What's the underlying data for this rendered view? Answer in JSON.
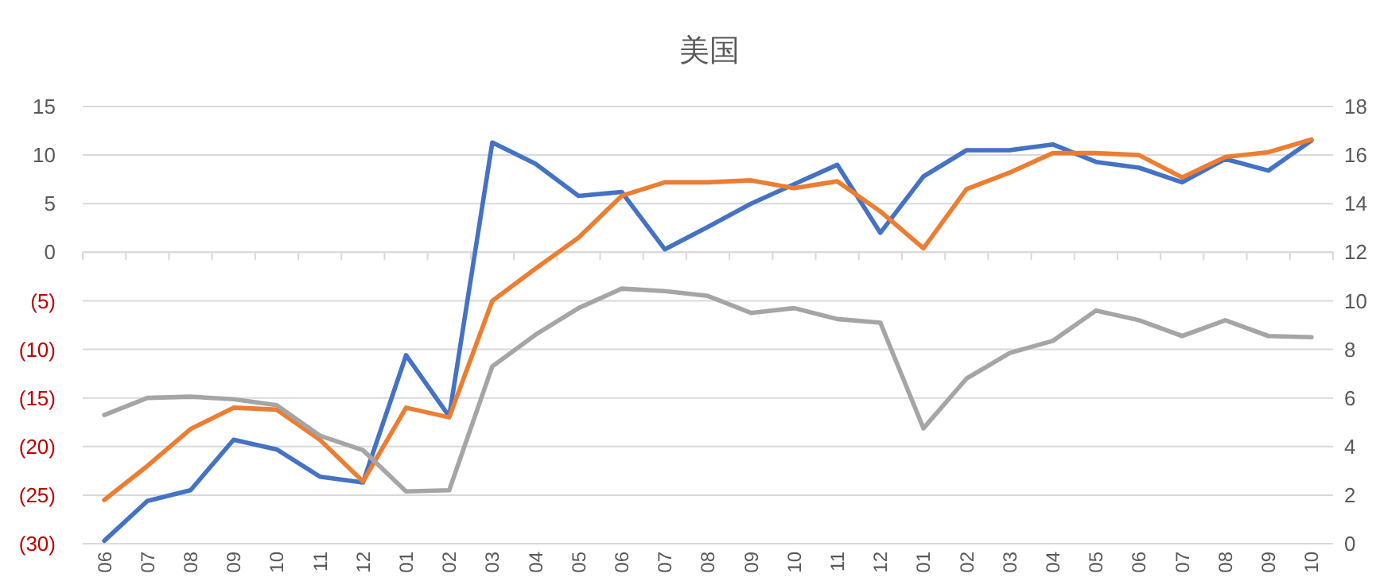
{
  "chart_data": {
    "type": "line",
    "title": "美国",
    "categories": [
      "06",
      "07",
      "08",
      "09",
      "10",
      "11",
      "12",
      "01",
      "02",
      "03",
      "04",
      "05",
      "06",
      "07",
      "08",
      "09",
      "10",
      "11",
      "12",
      "01",
      "02",
      "03",
      "04",
      "05",
      "06",
      "07",
      "08",
      "09",
      "10"
    ],
    "series": [
      {
        "color": "#4472c4",
        "values": [
          -29.7,
          -25.6,
          -24.5,
          -19.3,
          -20.3,
          -23.1,
          -23.7,
          -10.6,
          -16.9,
          11.3,
          9.1,
          5.8,
          6.2,
          0.3,
          2.6,
          5.0,
          7.0,
          9.0,
          2.0,
          7.8,
          10.5,
          10.5,
          11.1,
          9.3,
          8.7,
          7.2,
          9.6,
          8.4,
          11.5
        ]
      },
      {
        "color": "#ed7d31",
        "values": [
          -25.5,
          -22.0,
          -18.2,
          -16.0,
          -16.2,
          -19.3,
          -23.6,
          -16.0,
          -17.0,
          -5.0,
          -1.7,
          1.5,
          5.8,
          7.2,
          7.2,
          7.4,
          6.6,
          7.3,
          4.2,
          0.4,
          6.5,
          8.2,
          10.2,
          10.2,
          10.0,
          7.7,
          9.8,
          10.3,
          11.6
        ]
      },
      {
        "color": "#a5a5a5",
        "axis": "y2",
        "values": [
          5.3,
          6.0,
          6.05,
          5.95,
          5.7,
          4.45,
          3.85,
          2.15,
          2.2,
          7.3,
          8.6,
          9.7,
          10.5,
          10.4,
          10.2,
          9.5,
          9.7,
          9.25,
          9.1,
          4.75,
          6.8,
          7.85,
          8.35,
          9.6,
          9.2,
          8.55,
          9.2,
          8.55,
          8.5
        ]
      }
    ],
    "ylim": [
      -30,
      15
    ],
    "yticks": [
      {
        "value": -30,
        "label": "(30)"
      },
      {
        "value": -25,
        "label": "(25)"
      },
      {
        "value": -20,
        "label": "(20)"
      },
      {
        "value": -15,
        "label": "(15)"
      },
      {
        "value": -10,
        "label": "(10)"
      },
      {
        "value": -5,
        "label": "(5)"
      },
      0,
      5,
      10,
      15
    ],
    "y2lim": [
      0,
      18
    ],
    "y2ticks": [
      0,
      2,
      4,
      6,
      8,
      10,
      12,
      14,
      16,
      18
    ],
    "grid": "y",
    "marker": "none",
    "line_style": "solid"
  }
}
